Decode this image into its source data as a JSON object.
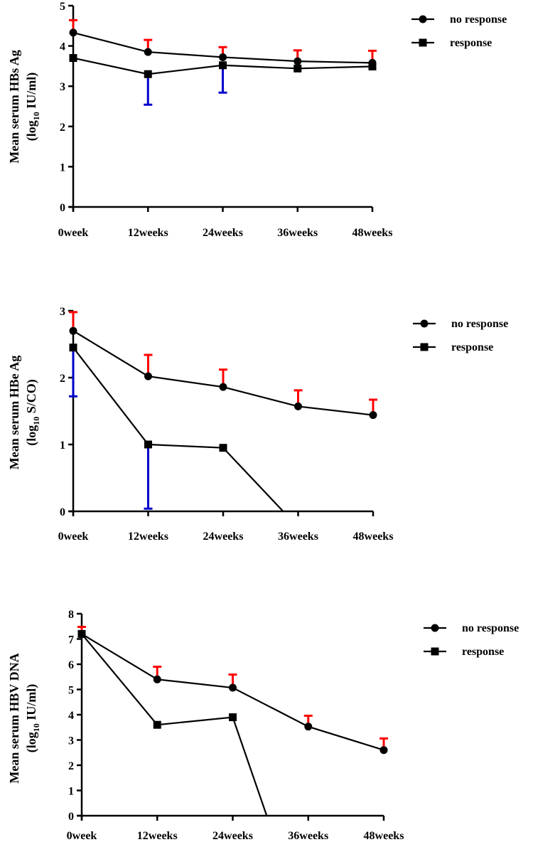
{
  "chart_data": [
    {
      "type": "line",
      "ylabel_line1": "Mean serum HBs Ag",
      "ylabel_line2_pre": "(log",
      "ylabel_line2_sub": "10",
      "ylabel_line2_post": " IU/ml)",
      "categories": [
        "0week",
        "12weeks",
        "24weeks",
        "36weeks",
        "48weeks"
      ],
      "ylim": [
        0,
        5
      ],
      "yticks": [
        "0",
        "1",
        "2",
        "3",
        "4",
        "5"
      ],
      "legend_position": "top-right",
      "series": [
        {
          "name": "no response",
          "marker": "circle",
          "values": [
            4.33,
            3.85,
            3.72,
            3.62,
            3.58
          ],
          "error_plus": [
            0.31,
            0.3,
            0.25,
            0.27,
            0.3
          ],
          "error_minus": [
            0,
            0,
            0,
            0,
            0
          ],
          "error_color": "#ff0000"
        },
        {
          "name": "response",
          "marker": "square",
          "values": [
            3.7,
            3.3,
            3.52,
            3.44,
            3.49
          ],
          "error_plus": [
            0,
            0,
            0,
            0,
            0
          ],
          "error_minus": [
            0,
            0.76,
            0.68,
            0,
            0
          ],
          "error_color": "#0000cc"
        }
      ]
    },
    {
      "type": "line",
      "ylabel_line1": "Mean serum HBe Ag",
      "ylabel_line2_pre": "(log",
      "ylabel_line2_sub": "10",
      "ylabel_line2_post": " S/CO)",
      "categories": [
        "0week",
        "12weeks",
        "24weeks",
        "36weeks",
        "48weeks"
      ],
      "ylim": [
        0,
        3
      ],
      "yticks": [
        "0",
        "1",
        "2",
        "3"
      ],
      "legend_position": "top-right",
      "series": [
        {
          "name": "no response",
          "marker": "circle",
          "values": [
            2.7,
            2.02,
            1.86,
            1.57,
            1.44
          ],
          "error_plus": [
            0.28,
            0.32,
            0.26,
            0.24,
            0.23
          ],
          "error_minus": [
            0,
            0,
            0,
            0,
            0
          ],
          "error_color": "#ff0000"
        },
        {
          "name": "response",
          "marker": "square",
          "values": [
            2.45,
            1.0,
            0.95,
            null,
            null
          ],
          "zero_at_x": 2.8,
          "error_plus": [
            0,
            0,
            0,
            0,
            0
          ],
          "error_minus": [
            0.73,
            0.96,
            0,
            0,
            0
          ],
          "error_color": "#0000cc"
        }
      ]
    },
    {
      "type": "line",
      "ylabel_line1": "Mean serum HBV DNA",
      "ylabel_line2_pre": "(log",
      "ylabel_line2_sub": "10",
      "ylabel_line2_post": " IU/ml)",
      "categories": [
        "0week",
        "12weeks",
        "24weeks",
        "36weeks",
        "48weeks"
      ],
      "ylim": [
        0,
        8
      ],
      "yticks": [
        "0",
        "1",
        "2",
        "3",
        "4",
        "5",
        "6",
        "7",
        "8"
      ],
      "legend_position": "top-right",
      "series": [
        {
          "name": "no response",
          "marker": "circle",
          "values": [
            7.2,
            5.4,
            5.07,
            3.53,
            2.6
          ],
          "error_plus": [
            0.28,
            0.5,
            0.52,
            0.43,
            0.46
          ],
          "error_minus": [
            0,
            0,
            0,
            0,
            0
          ],
          "error_color": "#ff0000"
        },
        {
          "name": "response",
          "marker": "square",
          "values": [
            7.2,
            3.6,
            3.9,
            null,
            null
          ],
          "zero_at_x": 2.45,
          "error_plus": [
            0,
            0,
            0,
            0,
            0
          ],
          "error_minus": [
            0,
            0,
            0,
            0,
            0
          ],
          "error_color": "#0000cc"
        }
      ]
    }
  ]
}
